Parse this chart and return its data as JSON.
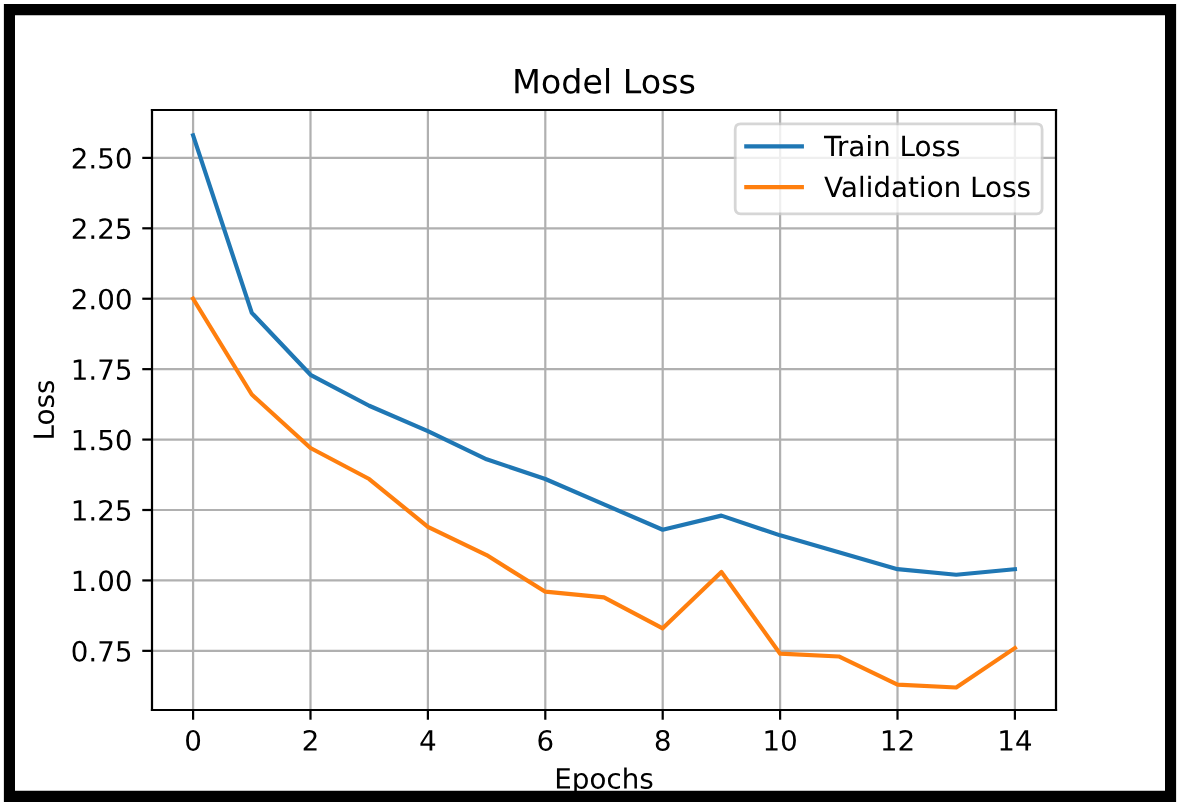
{
  "chart_data": {
    "type": "line",
    "title": "Model Loss",
    "xlabel": "Epochs",
    "ylabel": "Loss",
    "x": [
      0,
      1,
      2,
      3,
      4,
      5,
      6,
      7,
      8,
      9,
      10,
      11,
      12,
      13,
      14
    ],
    "series": [
      {
        "name": "Train Loss",
        "color": "#1f77b4",
        "values": [
          2.58,
          1.95,
          1.73,
          1.62,
          1.53,
          1.43,
          1.36,
          1.27,
          1.18,
          1.23,
          1.16,
          1.1,
          1.04,
          1.02,
          1.04
        ]
      },
      {
        "name": "Validation Loss",
        "color": "#ff7f0e",
        "values": [
          2.0,
          1.66,
          1.47,
          1.36,
          1.19,
          1.09,
          0.96,
          0.94,
          0.83,
          1.03,
          0.74,
          0.73,
          0.63,
          0.62,
          0.76
        ]
      }
    ],
    "xlim": [
      -0.7,
      14.7
    ],
    "ylim": [
      0.54,
      2.67
    ],
    "xticks": [
      0,
      2,
      4,
      6,
      8,
      10,
      12,
      14
    ],
    "yticks": [
      {
        "value": 0.75,
        "label": "0.75"
      },
      {
        "value": 1.0,
        "label": "1.00"
      },
      {
        "value": 1.25,
        "label": "1.25"
      },
      {
        "value": 1.5,
        "label": "1.50"
      },
      {
        "value": 1.75,
        "label": "1.75"
      },
      {
        "value": 2.0,
        "label": "2.00"
      },
      {
        "value": 2.25,
        "label": "2.25"
      },
      {
        "value": 2.5,
        "label": "2.50"
      }
    ],
    "grid": true,
    "legend": "top right",
    "marker": "none",
    "line_style": "solid"
  }
}
